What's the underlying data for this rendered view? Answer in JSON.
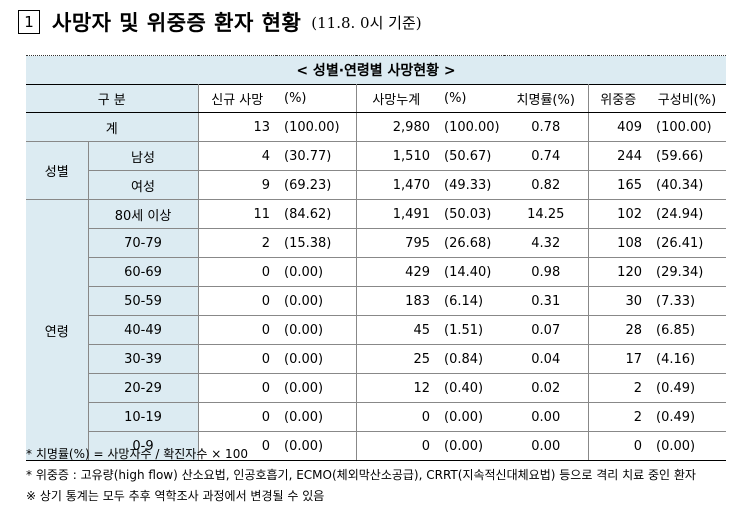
{
  "title": {
    "number": "1",
    "main": "사망자 및 위중증 환자 현황",
    "date": "(11.8. 0시 기준)"
  },
  "table": {
    "caption": "< 성별·연령별 사망현황 >",
    "headers": {
      "category": "구 분",
      "new_deaths": "신규 사망",
      "new_pct": "(%)",
      "cum_deaths": "사망누계",
      "cum_pct": "(%)",
      "fatality": "치명률(%)",
      "critical": "위중증",
      "composition": "구성비(%)"
    },
    "total": {
      "label": "계",
      "new_deaths": "13",
      "new_pct": "(100.00)",
      "cum_deaths": "2,980",
      "cum_pct": "(100.00)",
      "fatality": "0.78",
      "critical": "409",
      "composition": "(100.00)"
    },
    "sex_group": "성별",
    "sex": [
      {
        "label": "남성",
        "new_deaths": "4",
        "new_pct": "(30.77)",
        "cum_deaths": "1,510",
        "cum_pct": "(50.67)",
        "fatality": "0.74",
        "critical": "244",
        "composition": "(59.66)"
      },
      {
        "label": "여성",
        "new_deaths": "9",
        "new_pct": "(69.23)",
        "cum_deaths": "1,470",
        "cum_pct": "(49.33)",
        "fatality": "0.82",
        "critical": "165",
        "composition": "(40.34)"
      }
    ],
    "age_group": "연령",
    "age": [
      {
        "label": "80세 이상",
        "new_deaths": "11",
        "new_pct": "(84.62)",
        "cum_deaths": "1,491",
        "cum_pct": "(50.03)",
        "fatality": "14.25",
        "critical": "102",
        "composition": "(24.94)"
      },
      {
        "label": "70-79",
        "new_deaths": "2",
        "new_pct": "(15.38)",
        "cum_deaths": "795",
        "cum_pct": "(26.68)",
        "fatality": "4.32",
        "critical": "108",
        "composition": "(26.41)"
      },
      {
        "label": "60-69",
        "new_deaths": "0",
        "new_pct": "(0.00)",
        "cum_deaths": "429",
        "cum_pct": "(14.40)",
        "fatality": "0.98",
        "critical": "120",
        "composition": "(29.34)"
      },
      {
        "label": "50-59",
        "new_deaths": "0",
        "new_pct": "(0.00)",
        "cum_deaths": "183",
        "cum_pct": "(6.14)",
        "fatality": "0.31",
        "critical": "30",
        "composition": "(7.33)"
      },
      {
        "label": "40-49",
        "new_deaths": "0",
        "new_pct": "(0.00)",
        "cum_deaths": "45",
        "cum_pct": "(1.51)",
        "fatality": "0.07",
        "critical": "28",
        "composition": "(6.85)"
      },
      {
        "label": "30-39",
        "new_deaths": "0",
        "new_pct": "(0.00)",
        "cum_deaths": "25",
        "cum_pct": "(0.84)",
        "fatality": "0.04",
        "critical": "17",
        "composition": "(4.16)"
      },
      {
        "label": "20-29",
        "new_deaths": "0",
        "new_pct": "(0.00)",
        "cum_deaths": "12",
        "cum_pct": "(0.40)",
        "fatality": "0.02",
        "critical": "2",
        "composition": "(0.49)"
      },
      {
        "label": "10-19",
        "new_deaths": "0",
        "new_pct": "(0.00)",
        "cum_deaths": "0",
        "cum_pct": "(0.00)",
        "fatality": "0.00",
        "critical": "2",
        "composition": "(0.49)"
      },
      {
        "label": "0-9",
        "new_deaths": "0",
        "new_pct": "(0.00)",
        "cum_deaths": "0",
        "cum_pct": "(0.00)",
        "fatality": "0.00",
        "critical": "0",
        "composition": "(0.00)"
      }
    ]
  },
  "notes": [
    "* 치명률(%) = 사망자수 / 확진자수 × 100",
    "* 위중증 : 고유량(high flow) 산소요법, 인공호흡기, ECMO(체외막산소공급), CRRT(지속적신대체요법) 등으로 격리 치료 중인 환자",
    "※ 상기 통계는 모두 추후 역학조사 과정에서 변경될 수 있음"
  ],
  "colors": {
    "header_bg": "#dcebf2"
  }
}
